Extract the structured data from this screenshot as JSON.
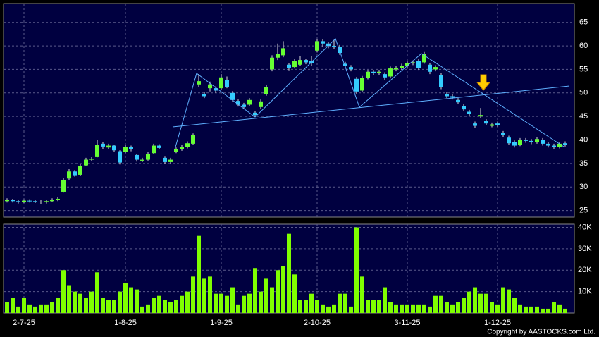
{
  "chart_data": {
    "type": "candlestick",
    "categories": [
      null,
      null,
      null,
      "2-7-25",
      null,
      null,
      null,
      null,
      null,
      null,
      null,
      null,
      null,
      null,
      null,
      null,
      null,
      null,
      null,
      null,
      null,
      "1-8-25",
      null,
      null,
      null,
      null,
      null,
      null,
      null,
      null,
      null,
      null,
      null,
      null,
      null,
      null,
      null,
      null,
      "1-9-25",
      null,
      null,
      null,
      null,
      null,
      null,
      null,
      null,
      null,
      null,
      null,
      null,
      null,
      null,
      null,
      null,
      "2-10-25",
      null,
      null,
      null,
      null,
      null,
      null,
      null,
      null,
      null,
      null,
      null,
      null,
      null,
      null,
      null,
      "3-11-25",
      null,
      null,
      null,
      null,
      null,
      null,
      null,
      null,
      null,
      null,
      null,
      null,
      null,
      null,
      null,
      "1-12-25",
      null,
      null,
      null,
      null,
      null,
      null,
      null,
      null,
      null,
      null,
      null,
      null
    ],
    "open": [
      27.0,
      27.2,
      27.0,
      26.8,
      27.1,
      27.0,
      26.9,
      26.8,
      27.0,
      27.3,
      29.0,
      31.8,
      33.3,
      32.6,
      34.6,
      35.8,
      36.5,
      39.2,
      38.4,
      38.8,
      37.6,
      37.5,
      38.5,
      36.8,
      35.6,
      35.8,
      37.2,
      38.8,
      36.2,
      35.3,
      37.5,
      38.0,
      38.5,
      39.2,
      51.8,
      49.8,
      51.0,
      51.0,
      51.0,
      52.8,
      50.0,
      48.3,
      47.5,
      47.5,
      45.8,
      47.0,
      49.8,
      55.0,
      57.5,
      58.0,
      56.0,
      55.5,
      56.0,
      57.0,
      56.8,
      59.0,
      61.0,
      60.5,
      60.0,
      59.8,
      56.2,
      55.5,
      53.0,
      50.5,
      53.2,
      54.5,
      54.2,
      54.0,
      53.5,
      55.0,
      55.3,
      55.8,
      56.3,
      56.8,
      56.5,
      56.0,
      55.0,
      53.8,
      49.8,
      49.3,
      48.5,
      47.2,
      46.0,
      43.5,
      45.0,
      44.0,
      43.0,
      43.5,
      41.5,
      40.5,
      39.5,
      39.0,
      40.0,
      39.8,
      39.5,
      40.0,
      39.2,
      38.8,
      38.5,
      39.3
    ],
    "high": [
      27.6,
      27.5,
      27.3,
      27.4,
      27.4,
      27.3,
      27.2,
      27.3,
      27.6,
      27.8,
      32.0,
      33.8,
      33.6,
      34.9,
      36.2,
      36.4,
      40.0,
      39.5,
      39.2,
      39.0,
      37.8,
      39.0,
      38.8,
      37.0,
      36.2,
      37.4,
      39.2,
      39.1,
      36.6,
      36.2,
      38.4,
      38.9,
      39.7,
      41.4,
      54.0,
      50.2,
      52.4,
      51.4,
      54.0,
      53.5,
      50.4,
      48.6,
      47.9,
      48.9,
      46.2,
      48.6,
      51.7,
      58.0,
      60.5,
      61.0,
      56.4,
      57.3,
      57.8,
      57.3,
      57.8,
      61.4,
      61.4,
      60.9,
      61.3,
      60.2,
      56.6,
      55.9,
      53.4,
      53.6,
      54.9,
      54.9,
      54.9,
      54.4,
      55.6,
      55.7,
      56.2,
      56.7,
      56.9,
      57.2,
      58.7,
      56.4,
      55.9,
      54.2,
      50.2,
      49.7,
      48.9,
      47.6,
      46.4,
      43.9,
      46.8,
      44.4,
      43.7,
      43.9,
      41.9,
      40.9,
      39.9,
      40.4,
      40.4,
      40.2,
      40.6,
      40.4,
      39.6,
      39.2,
      39.6,
      39.7
    ],
    "low": [
      26.7,
      26.7,
      26.5,
      26.6,
      26.7,
      26.6,
      26.4,
      26.5,
      26.8,
      27.0,
      28.8,
      31.5,
      32.2,
      32.4,
      34.4,
      35.5,
      36.3,
      38.0,
      38.0,
      37.4,
      34.8,
      37.2,
      37.6,
      35.4,
      35.3,
      35.6,
      37.0,
      38.0,
      34.9,
      35.0,
      37.2,
      37.7,
      38.2,
      38.9,
      51.3,
      48.9,
      50.3,
      50.0,
      50.6,
      51.0,
      48.1,
      47.1,
      46.6,
      47.2,
      44.9,
      46.6,
      49.4,
      54.6,
      57.0,
      57.6,
      54.8,
      55.2,
      55.7,
      56.1,
      55.8,
      58.6,
      59.8,
      59.5,
      59.4,
      58.1,
      55.3,
      54.6,
      49.8,
      50.1,
      52.9,
      53.8,
      53.8,
      52.8,
      53.1,
      54.6,
      54.9,
      55.4,
      55.9,
      54.9,
      56.2,
      54.0,
      54.6,
      50.8,
      48.9,
      48.6,
      47.6,
      46.1,
      45.1,
      42.6,
      44.6,
      43.1,
      42.7,
      42.8,
      40.6,
      38.9,
      38.4,
      38.7,
      39.4,
      39.1,
      39.2,
      38.8,
      38.4,
      38.1,
      38.2,
      38.6
    ],
    "close": [
      27.2,
      27.0,
      26.8,
      27.1,
      27.0,
      26.9,
      26.8,
      27.0,
      27.3,
      27.5,
      31.5,
      33.3,
      32.5,
      34.5,
      35.8,
      36.0,
      39.0,
      38.6,
      38.8,
      37.8,
      35.2,
      38.5,
      38.0,
      35.8,
      35.8,
      37.0,
      38.8,
      38.3,
      35.3,
      35.8,
      38.0,
      38.5,
      39.3,
      41.0,
      52.5,
      49.3,
      51.8,
      50.5,
      53.3,
      51.3,
      48.5,
      47.5,
      47.0,
      48.5,
      45.3,
      48.2,
      51.2,
      57.5,
      58.3,
      59.5,
      55.3,
      56.8,
      57.0,
      56.5,
      56.3,
      61.0,
      60.5,
      60.0,
      59.8,
      58.5,
      55.8,
      55.0,
      50.3,
      53.2,
      54.5,
      54.2,
      54.5,
      53.3,
      55.2,
      55.3,
      55.8,
      56.3,
      56.5,
      55.3,
      58.3,
      54.5,
      55.5,
      51.3,
      49.3,
      49.0,
      48.0,
      46.5,
      45.5,
      43.0,
      45.3,
      43.5,
      43.3,
      43.2,
      41.0,
      39.3,
      38.8,
      40.0,
      39.8,
      39.5,
      40.2,
      39.2,
      38.8,
      38.5,
      39.2,
      39.0
    ],
    "volume": [
      5000,
      7000,
      3000,
      7000,
      4000,
      3000,
      4000,
      4000,
      5000,
      7000,
      20000,
      13000,
      10000,
      9000,
      7000,
      10000,
      19000,
      7000,
      6000,
      6000,
      10000,
      14000,
      12000,
      11000,
      3000,
      4000,
      7000,
      8000,
      6000,
      5000,
      6000,
      8000,
      10000,
      17000,
      36000,
      16000,
      17000,
      9000,
      9000,
      8000,
      12000,
      4000,
      8000,
      9000,
      21000,
      10000,
      16000,
      12000,
      20000,
      22000,
      37000,
      18000,
      6000,
      6000,
      9000,
      6000,
      4000,
      3000,
      4000,
      9000,
      9000,
      3000,
      40000,
      17000,
      6000,
      6000,
      6000,
      12000,
      5000,
      4000,
      4000,
      4000,
      4000,
      4000,
      4000,
      3000,
      8000,
      8000,
      5000,
      4000,
      5000,
      7000,
      10000,
      12000,
      9000,
      9000,
      5000,
      4000,
      12000,
      11000,
      7000,
      4000,
      3000,
      3000,
      3000,
      2000,
      2000,
      5000,
      4000,
      2000
    ],
    "up_color": "#66ff33",
    "down_color": "#33ccff",
    "volume_color": "#80ff00",
    "ylim": [
      23.6,
      69
    ],
    "yticks": [
      25,
      30,
      35,
      40,
      45,
      50,
      55,
      60,
      65
    ],
    "y2lim": [
      0,
      41500
    ],
    "y2ticks": [
      {
        "value": 10000,
        "label": "10K"
      },
      {
        "value": 20000,
        "label": "20K"
      },
      {
        "value": 30000,
        "label": "30K"
      },
      {
        "value": 40000,
        "label": "40K"
      }
    ],
    "grid": true,
    "source": "Copyright by AASTOCKS.com Ltd."
  }
}
